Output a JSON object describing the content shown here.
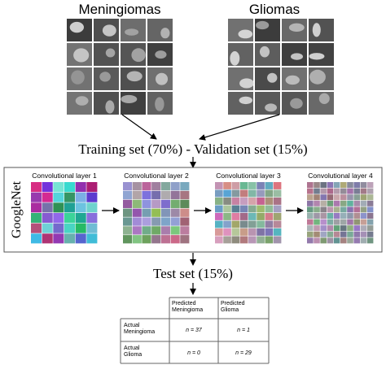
{
  "inputs": {
    "meningiomas": "Meningiomas",
    "gliomas": "Gliomas"
  },
  "split": "Training set (70%) - Validation set (15%)",
  "network": {
    "name": "GoogleNet",
    "layers": [
      "Convolutional layer 1",
      "Convolutional layer 2",
      "Convolutional layer 3",
      "Convolutional layer 4"
    ]
  },
  "test": "Test set (15%)",
  "table": {
    "header": [
      "Predicted Meningioma",
      "Predicted Glioma"
    ],
    "rows": [
      [
        "Actual Meningioma",
        "n = 37",
        "n = 1"
      ],
      [
        "Actual Glioma",
        "n = 0",
        "n = 29"
      ]
    ]
  }
}
